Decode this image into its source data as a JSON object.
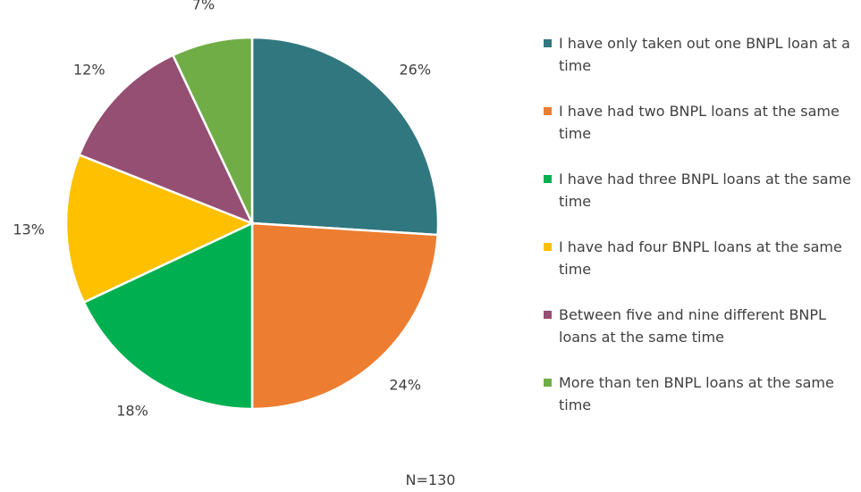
{
  "chart_data": {
    "type": "pie",
    "categories": [
      "I have only taken out one BNPL loan at a time",
      "I have had two BNPL loans at the same time",
      "I have had three BNPL loans at the same time",
      "I have had four BNPL loans at the same time",
      "Between five and nine different BNPL loans at the same time",
      "More than ten BNPL loans at the same time"
    ],
    "values": [
      26,
      24,
      18,
      13,
      12,
      7
    ],
    "value_labels": [
      "26%",
      "24%",
      "18%",
      "13%",
      "12%",
      "7%"
    ],
    "colors": [
      "#31777f",
      "#ed7d31",
      "#00b050",
      "#ffc000",
      "#954f72",
      "#70ad47"
    ],
    "annotation": "N=130",
    "legend": "right"
  }
}
